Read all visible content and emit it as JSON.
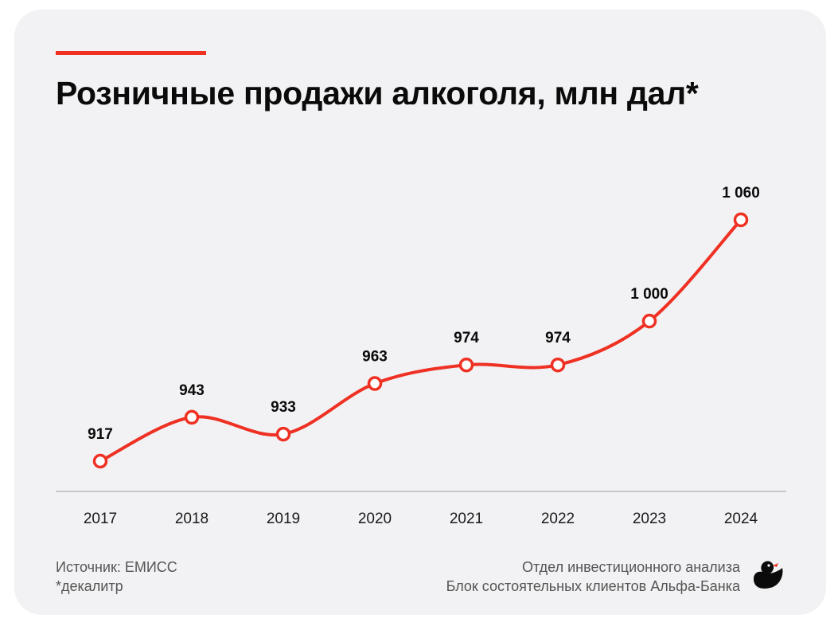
{
  "title": "Розничные продажи алкоголя, млн дал*",
  "footer": {
    "source": "Источник: ЕМИСС",
    "note": "*декалитр",
    "dept_line1": "Отдел инвестиционного анализа",
    "dept_line2": "Блок состоятельных клиентов Альфа-Банка"
  },
  "colors": {
    "accent": "#ef3124",
    "background": "#f2f2f4",
    "text": "#0b0b0b"
  },
  "chart_data": {
    "type": "line",
    "title": "Розничные продажи алкоголя, млн дал*",
    "categories": [
      "2017",
      "2018",
      "2019",
      "2020",
      "2021",
      "2022",
      "2023",
      "2024"
    ],
    "values": [
      917,
      943,
      933,
      963,
      974,
      974,
      1000,
      1060
    ],
    "labels": [
      "917",
      "943",
      "933",
      "963",
      "974",
      "974",
      "1 000",
      "1 060"
    ],
    "grid": false,
    "legend": "none"
  }
}
